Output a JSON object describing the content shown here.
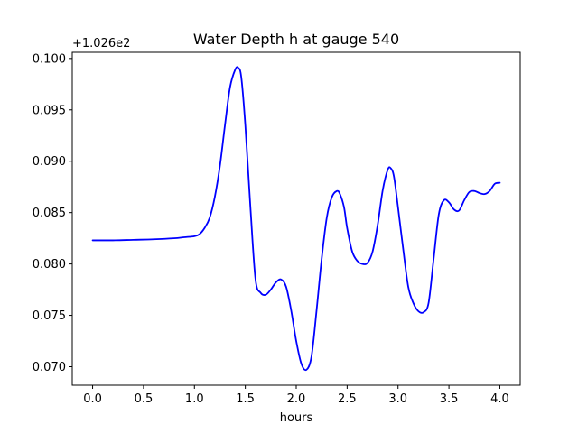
{
  "chart_data": {
    "type": "line",
    "title": "Water Depth h at gauge 540",
    "xlabel": "hours",
    "ylabel": "",
    "y_offset_label": "+1.026e2",
    "xlim": [
      -0.2,
      4.2
    ],
    "ylim": [
      0.0682,
      0.1006
    ],
    "x_ticks": [
      0.0,
      0.5,
      1.0,
      1.5,
      2.0,
      2.5,
      3.0,
      3.5,
      4.0
    ],
    "x_tick_labels": [
      "0.0",
      "0.5",
      "1.0",
      "1.5",
      "2.0",
      "2.5",
      "3.0",
      "3.5",
      "4.0"
    ],
    "y_ticks": [
      0.07,
      0.075,
      0.08,
      0.085,
      0.09,
      0.095,
      0.1
    ],
    "y_tick_labels": [
      "0.070",
      "0.075",
      "0.080",
      "0.085",
      "0.090",
      "0.095",
      "0.100"
    ],
    "grid": false,
    "legend": "none",
    "series": [
      {
        "color": "#0000ff",
        "x": [
          0.0,
          0.2,
          0.4,
          0.6,
          0.8,
          0.9,
          1.0,
          1.05,
          1.1,
          1.15,
          1.2,
          1.25,
          1.3,
          1.35,
          1.4,
          1.43,
          1.46,
          1.5,
          1.55,
          1.6,
          1.65,
          1.7,
          1.75,
          1.8,
          1.85,
          1.9,
          1.95,
          2.0,
          2.05,
          2.1,
          2.15,
          2.2,
          2.25,
          2.3,
          2.35,
          2.4,
          2.43,
          2.47,
          2.5,
          2.55,
          2.6,
          2.65,
          2.7,
          2.75,
          2.8,
          2.85,
          2.9,
          2.93,
          2.96,
          3.0,
          3.05,
          3.1,
          3.15,
          3.2,
          3.25,
          3.3,
          3.35,
          3.4,
          3.45,
          3.5,
          3.55,
          3.6,
          3.65,
          3.7,
          3.75,
          3.8,
          3.85,
          3.9,
          3.95,
          4.0
        ],
        "y": [
          0.0823,
          0.0823,
          0.08235,
          0.0824,
          0.0825,
          0.0826,
          0.0827,
          0.0829,
          0.0835,
          0.0845,
          0.0865,
          0.0895,
          0.0935,
          0.0972,
          0.0989,
          0.0991,
          0.0982,
          0.0935,
          0.0855,
          0.0785,
          0.0772,
          0.077,
          0.0775,
          0.0782,
          0.0785,
          0.0778,
          0.0755,
          0.0725,
          0.0703,
          0.0697,
          0.071,
          0.0755,
          0.0805,
          0.0845,
          0.0865,
          0.0871,
          0.0868,
          0.0855,
          0.0835,
          0.0812,
          0.0803,
          0.08,
          0.0801,
          0.0812,
          0.0838,
          0.0872,
          0.0892,
          0.0893,
          0.0885,
          0.0855,
          0.0815,
          0.0778,
          0.0762,
          0.0754,
          0.0753,
          0.0762,
          0.0805,
          0.0848,
          0.0862,
          0.086,
          0.0853,
          0.0852,
          0.0862,
          0.087,
          0.0871,
          0.0869,
          0.0868,
          0.0871,
          0.0878,
          0.0879
        ]
      }
    ]
  }
}
